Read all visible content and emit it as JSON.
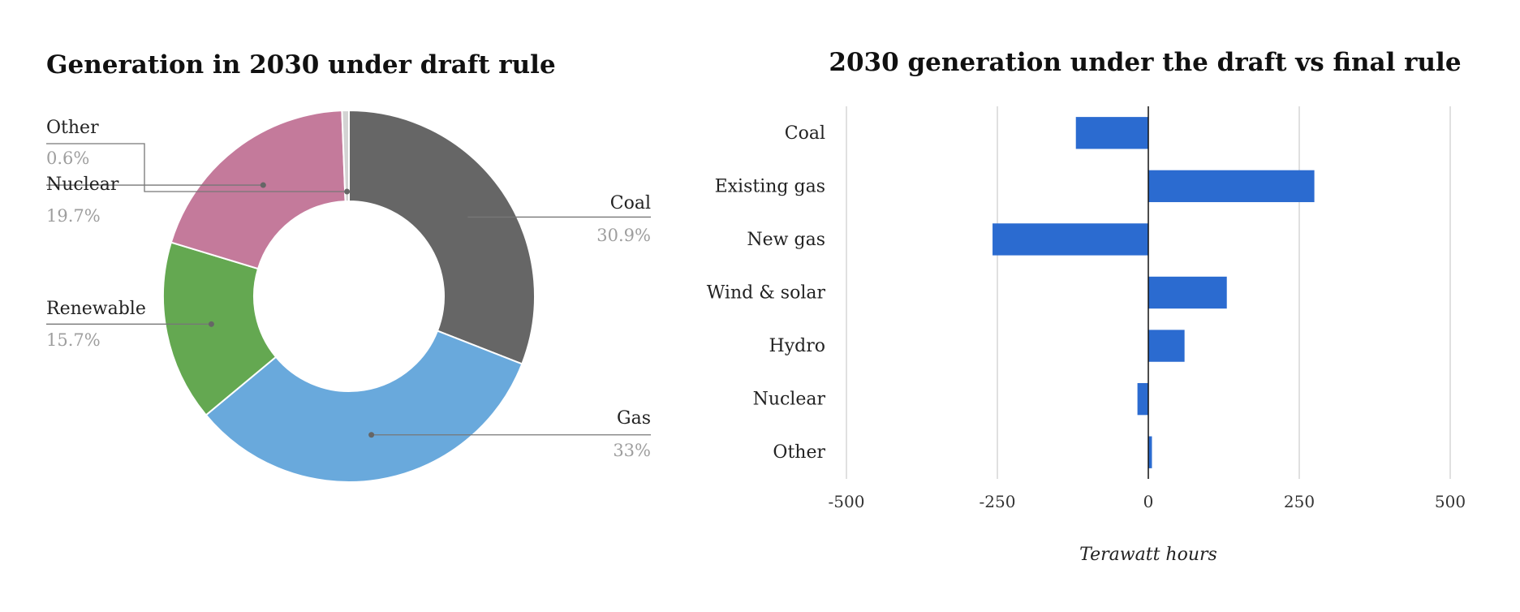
{
  "chart_data": [
    {
      "type": "pie",
      "title": "Generation in 2030 under draft rule",
      "hole": true,
      "slices": [
        {
          "name": "Coal",
          "value": 30.9,
          "label": "30.9%",
          "color": "#666666"
        },
        {
          "name": "Gas",
          "value": 33,
          "label": "33%",
          "color": "#69a9dc"
        },
        {
          "name": "Renewable",
          "value": 15.7,
          "label": "15.7%",
          "color": "#64a851"
        },
        {
          "name": "Nuclear",
          "value": 19.7,
          "label": "19.7%",
          "color": "#c47a9b"
        },
        {
          "name": "Other",
          "value": 0.6,
          "label": "0.6%",
          "color": "#d3d3d3"
        }
      ]
    },
    {
      "type": "bar",
      "orientation": "horizontal",
      "title": "2030 generation under the draft vs final rule",
      "xlabel": "Terawatt hours",
      "ylabel": "",
      "xlim": [
        -500,
        500
      ],
      "ticks": [
        "-500",
        "-250",
        "0",
        "250",
        "500"
      ],
      "grid": true,
      "color": "#2b6bd0",
      "categories": [
        "Coal",
        "Existing gas",
        "New gas",
        "Wind & solar",
        "Hydro",
        "Nuclear",
        "Other"
      ],
      "values": [
        -120,
        275,
        -258,
        130,
        60,
        -18,
        6
      ]
    }
  ]
}
